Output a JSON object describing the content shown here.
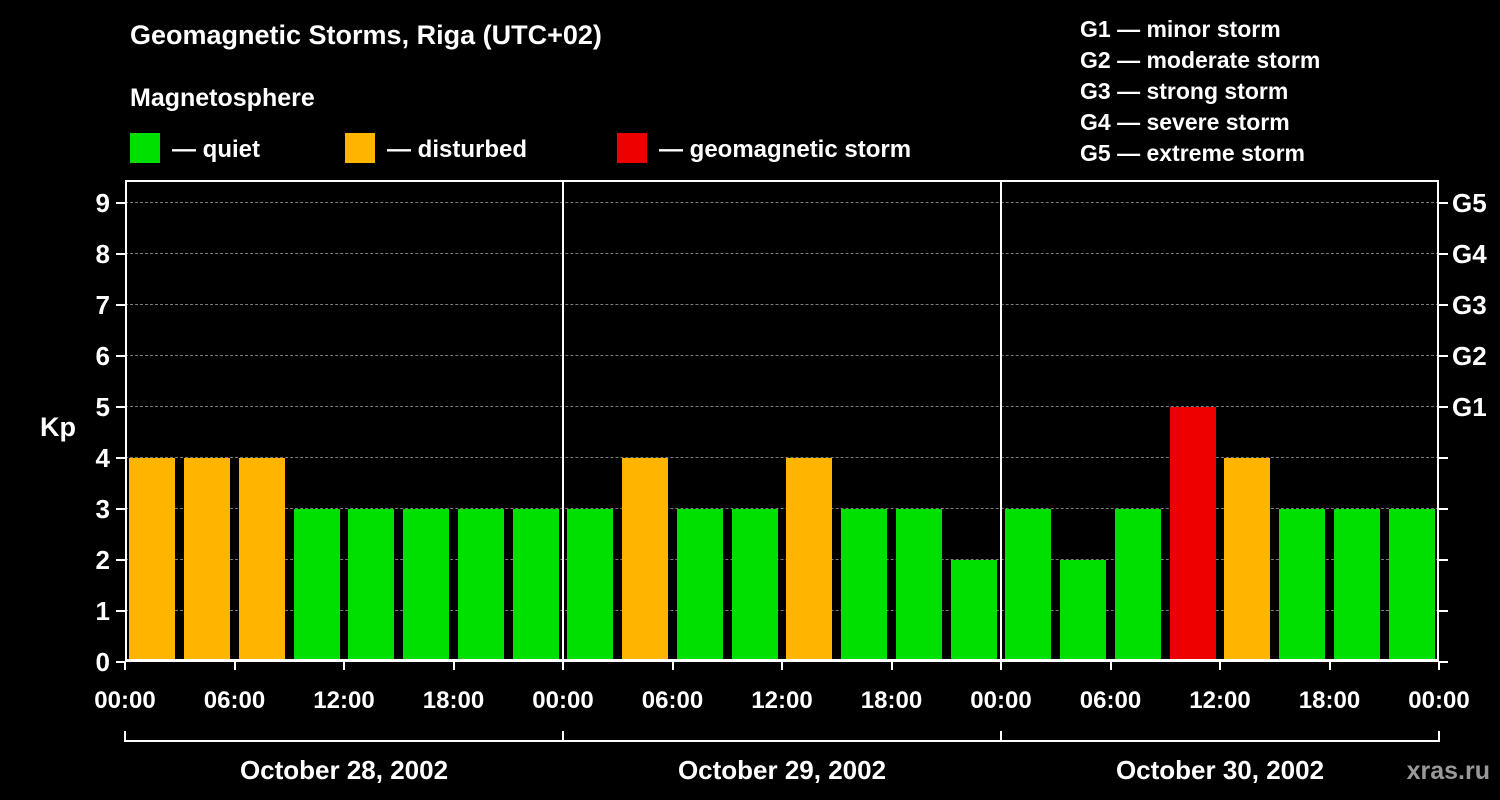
{
  "title": "Geomagnetic Storms, Riga (UTC+02)",
  "subtitle": "Magnetosphere",
  "legend": {
    "items": [
      {
        "name": "quiet",
        "label": "— quiet",
        "color": "#00e000"
      },
      {
        "name": "disturbed",
        "label": "— disturbed",
        "color": "#ffb400"
      },
      {
        "name": "geomagnetic-storm",
        "label": "— geomagnetic storm",
        "color": "#ee0000"
      }
    ]
  },
  "storm_scale": [
    "G1 — minor storm",
    "G2 — moderate storm",
    "G3 — strong storm",
    "G4 — severe storm",
    "G5 — extreme storm"
  ],
  "watermark": "xras.ru",
  "chart_data": {
    "type": "bar",
    "title": "Geomagnetic Storms, Riga (UTC+02)",
    "subtitle": "Magnetosphere",
    "ylabel": "Kp",
    "ylim": [
      0,
      9
    ],
    "y_ticks": [
      0,
      1,
      2,
      3,
      4,
      5,
      6,
      7,
      8,
      9
    ],
    "grid": "dashed horizontal line at each Kp level",
    "legend_position": "top-left",
    "interval_hours": 3,
    "x_tick_labels": [
      "00:00",
      "06:00",
      "12:00",
      "18:00",
      "00:00",
      "06:00",
      "12:00",
      "18:00",
      "00:00",
      "06:00",
      "12:00",
      "18:00",
      "00:00"
    ],
    "right_axis": [
      {
        "label": "G1",
        "kp": 5
      },
      {
        "label": "G2",
        "kp": 6
      },
      {
        "label": "G3",
        "kp": 7
      },
      {
        "label": "G4",
        "kp": 8
      },
      {
        "label": "G5",
        "kp": 9
      }
    ],
    "days": [
      {
        "date": "October 28, 2002",
        "values": [
          4,
          4,
          4,
          3,
          3,
          3,
          3,
          3
        ]
      },
      {
        "date": "October 29, 2002",
        "values": [
          3,
          4,
          3,
          3,
          4,
          3,
          3,
          2
        ]
      },
      {
        "date": "October 30, 2002",
        "values": [
          3,
          2,
          3,
          5,
          4,
          3,
          3,
          3
        ]
      }
    ],
    "colors": {
      "quiet": "#00e000",
      "disturbed": "#ffb400",
      "storm": "#ee0000"
    },
    "color_rule": "Kp<4 quiet(green), Kp=4 disturbed(orange), Kp>=5 storm(red)"
  }
}
